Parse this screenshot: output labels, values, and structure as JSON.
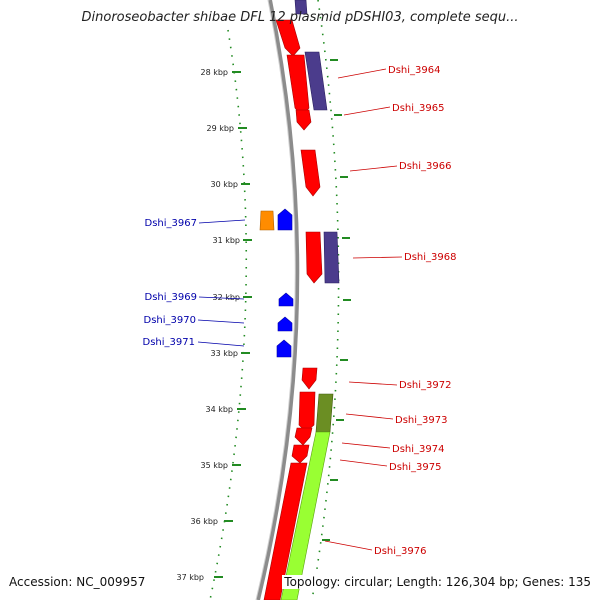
{
  "title": "Dinoroseobacter shibae DFL 12 plasmid pDSHI03, complete sequ...",
  "accession": "Accession: NC_009957",
  "topology": "Topology: circular; Length: 126,304 bp; Genes: 135",
  "colors": {
    "backbone": "#8c8c8c",
    "forward_gene": "#ff0000",
    "reverse_gene": "#0000ff",
    "orange_feature": "#ff8c00",
    "purple_feature": "#4b3c8c",
    "green_feature": "#99ff33",
    "olive_feature": "#6b8e23",
    "tick": "#228b22",
    "label_right": "#cc0000",
    "label_left": "#0000aa"
  },
  "kbp_ticks": [
    "28 kbp",
    "29 kbp",
    "30 kbp",
    "31 kbp",
    "32 kbp",
    "33 kbp",
    "34 kbp",
    "35 kbp",
    "36 kbp",
    "37 kbp"
  ],
  "labels_right": [
    "Dshi_3964",
    "Dshi_3965",
    "Dshi_3966",
    "Dshi_3968",
    "Dshi_3972",
    "Dshi_3973",
    "Dshi_3974",
    "Dshi_3975",
    "Dshi_3976"
  ],
  "labels_left": [
    "Dshi_3967",
    "Dshi_3969",
    "Dshi_3970",
    "Dshi_3971"
  ]
}
